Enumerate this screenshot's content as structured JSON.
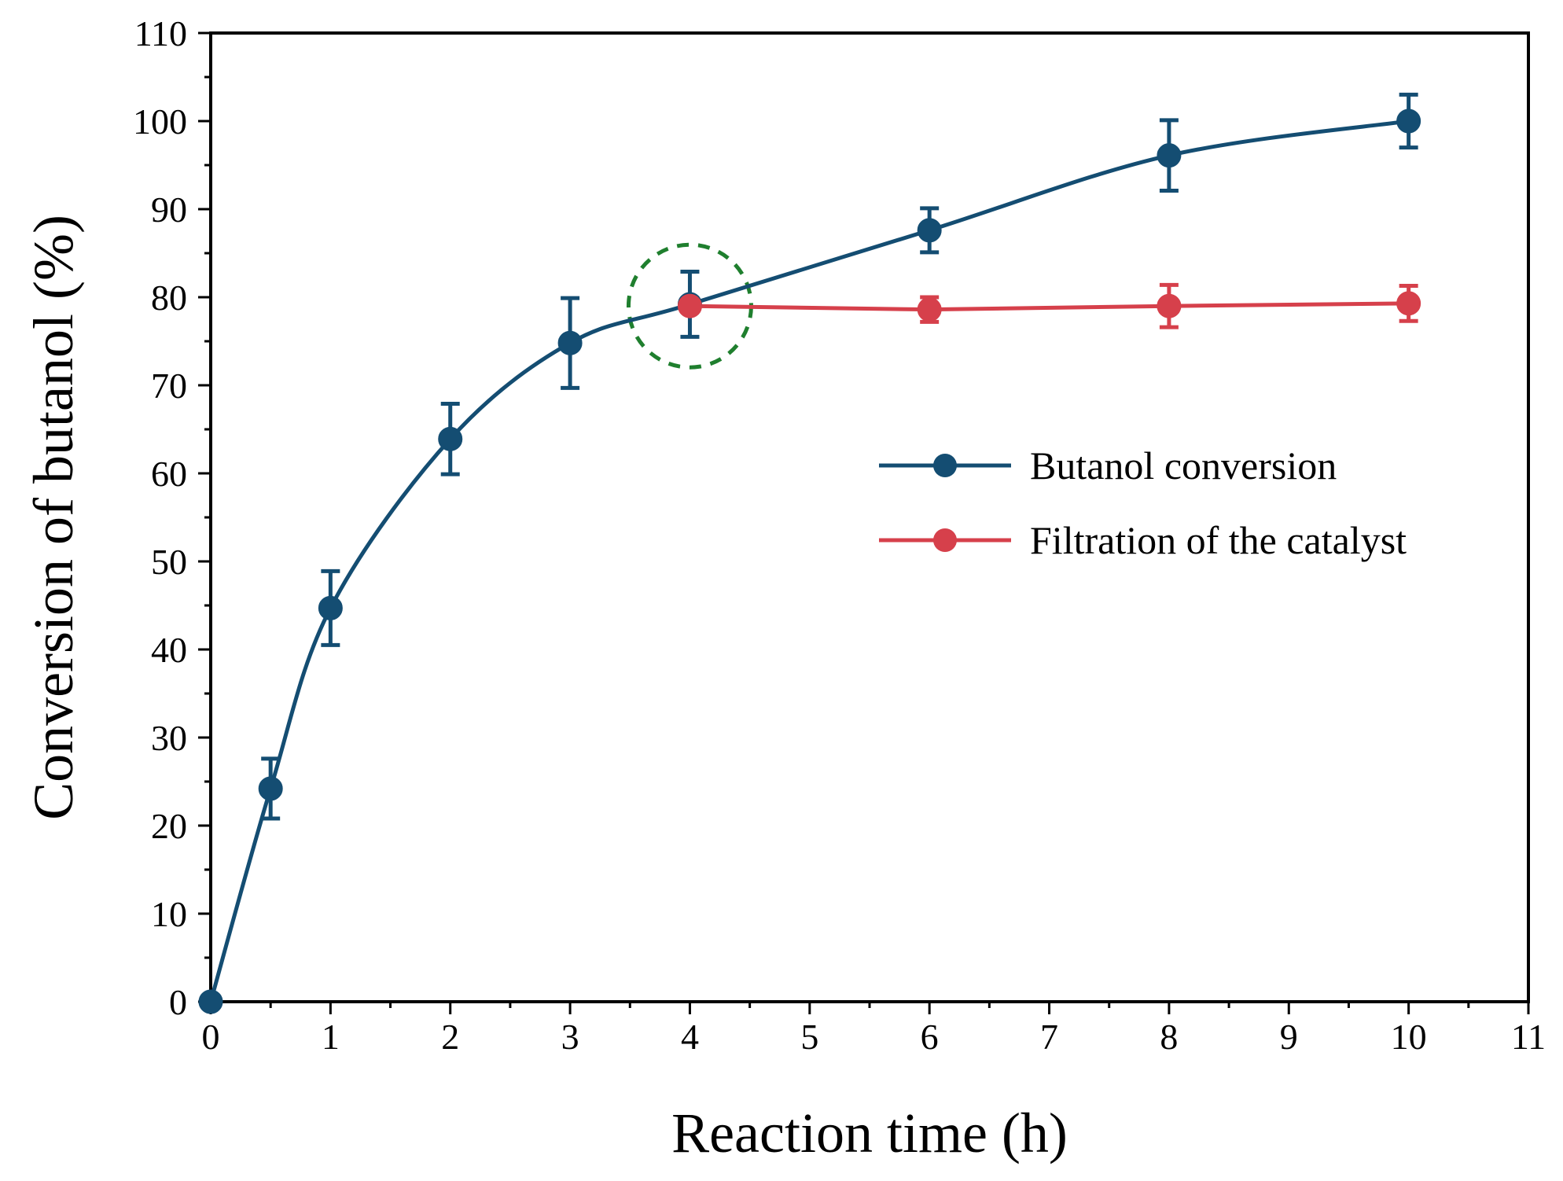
{
  "chart_data": {
    "type": "line",
    "title": "",
    "xlabel": "Reaction time (h)",
    "ylabel": "Conversion of butanol (%)",
    "xlim": [
      0,
      11
    ],
    "ylim": [
      0,
      110
    ],
    "x_ticks": [
      0,
      1,
      2,
      3,
      4,
      5,
      6,
      7,
      8,
      9,
      10,
      11
    ],
    "y_ticks": [
      0,
      10,
      20,
      30,
      40,
      50,
      60,
      70,
      80,
      90,
      100,
      110
    ],
    "x_tick_labels": [
      "0",
      "1",
      "2",
      "3",
      "4",
      "5",
      "6",
      "7",
      "8",
      "9",
      "10",
      "11"
    ],
    "y_tick_labels": [
      "0",
      "10",
      "20",
      "30",
      "40",
      "50",
      "60",
      "70",
      "80",
      "90",
      "100",
      "110"
    ],
    "grid": false,
    "legend_position": "right-middle",
    "series": [
      {
        "name": "Butanol conversion",
        "color": "#144d72",
        "x": [
          0,
          0.5,
          1,
          2,
          3,
          4,
          6,
          8,
          10
        ],
        "y": [
          0,
          24.2,
          44.7,
          63.9,
          74.8,
          79.2,
          87.6,
          96.1,
          100.0
        ],
        "error": [
          0,
          3.4,
          4.2,
          4.0,
          5.1,
          3.7,
          2.5,
          4.0,
          3.0
        ]
      },
      {
        "name": "Filtration of the catalyst",
        "color": "#d6404b",
        "x": [
          4,
          6,
          8,
          10
        ],
        "y": [
          79.0,
          78.6,
          79.0,
          79.3
        ],
        "error": [
          0,
          1.4,
          2.4,
          2.0
        ]
      }
    ],
    "annotations": [
      {
        "type": "dashed-circle",
        "color": "#1f7f2e",
        "x": 4,
        "y": 79,
        "note": "filtration point"
      }
    ]
  }
}
